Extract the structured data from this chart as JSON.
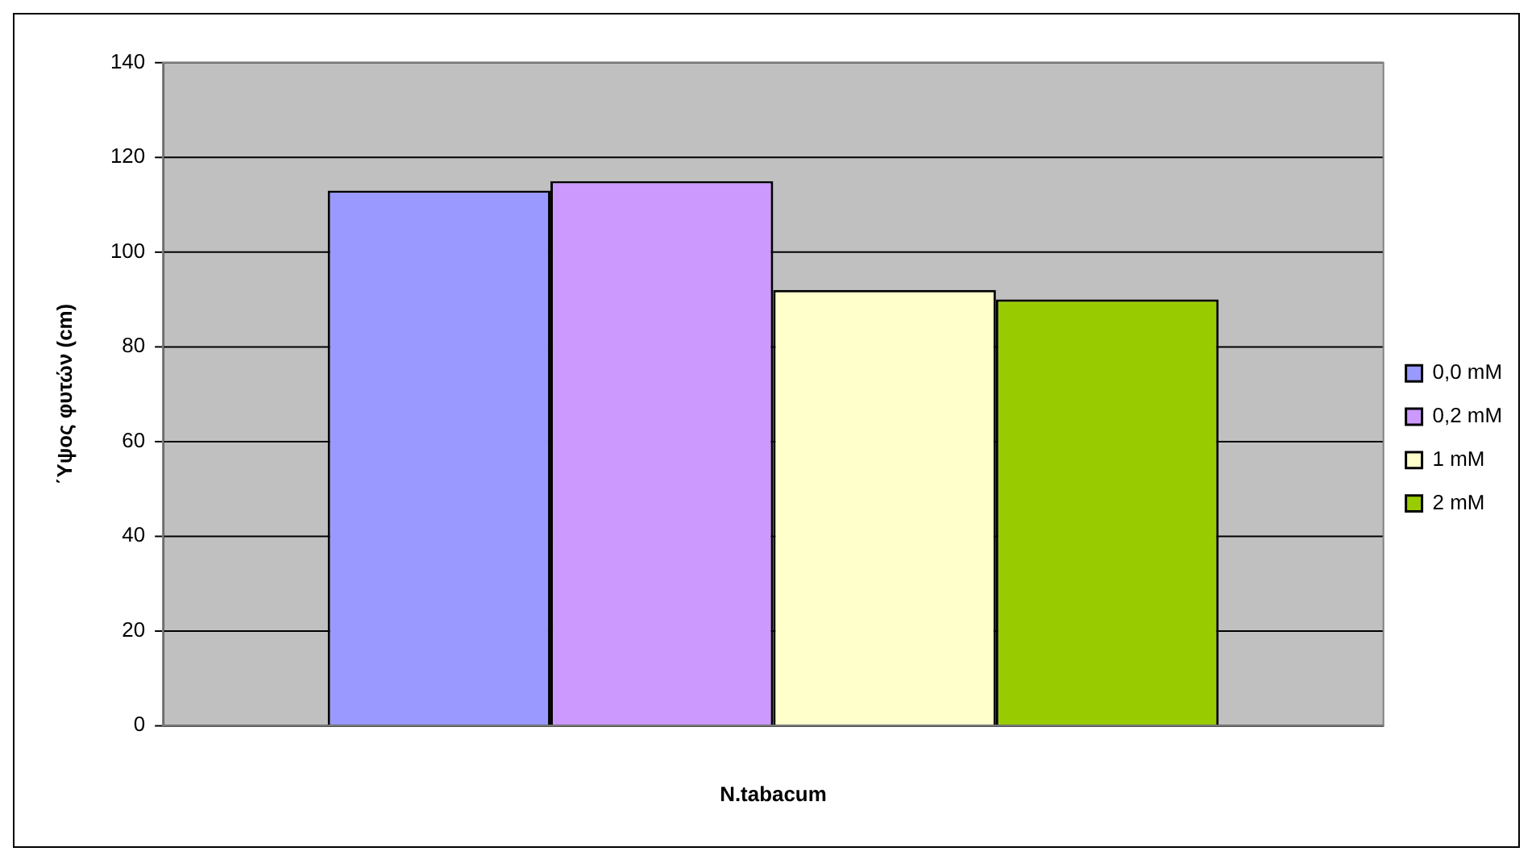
{
  "chart_data": {
    "type": "bar",
    "xlabel": "N.tabacum",
    "ylabel": "΄Υψος φυτών (cm)",
    "categories": [
      null
    ],
    "series": [
      {
        "name": "0,0 mM",
        "color": "#9999ff",
        "values": [
          113
        ]
      },
      {
        "name": "0,2 mM",
        "color": "#cc99ff",
        "values": [
          115
        ]
      },
      {
        "name": "1 mM",
        "color": "#ffffcc",
        "values": [
          92
        ]
      },
      {
        "name": "2 mM",
        "color": "#99cc00",
        "values": [
          90
        ]
      }
    ],
    "ylim": [
      0,
      140
    ],
    "yticks": [
      0,
      20,
      40,
      60,
      80,
      100,
      120,
      140
    ],
    "grid": "y",
    "legend": "right"
  }
}
